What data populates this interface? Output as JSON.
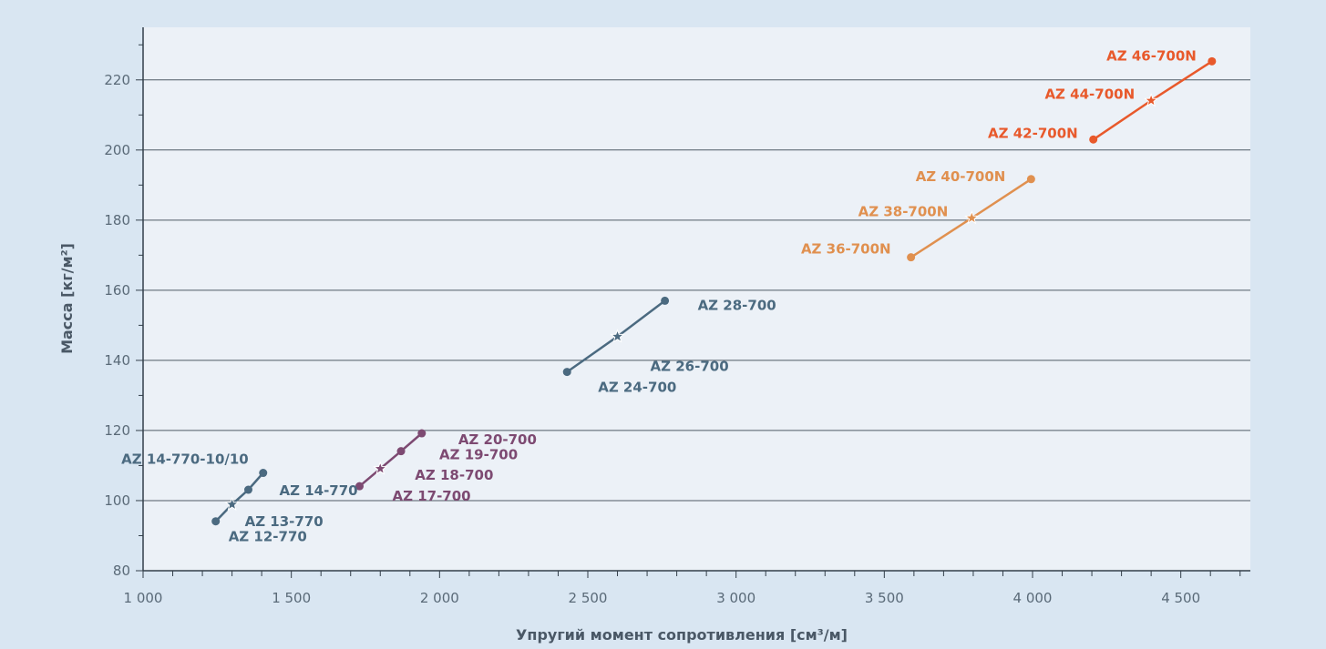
{
  "chart_data": {
    "type": "line",
    "xlabel": "Упругий момент сопротивления [см³/м]",
    "ylabel": "Масса [кг/м²]",
    "xlim": [
      1000,
      4750
    ],
    "ylim": [
      80,
      235
    ],
    "x_ticks": [
      1000,
      1500,
      2000,
      2500,
      3000,
      3500,
      4000,
      4500
    ],
    "x_tick_labels": [
      "1 000",
      "1 500",
      "2 000",
      "2 500",
      "3 000",
      "3 500",
      "4 000",
      "4 500"
    ],
    "y_ticks": [
      80,
      100,
      120,
      140,
      160,
      180,
      200,
      220
    ],
    "y_tick_labels": [
      "80",
      "100",
      "120",
      "140",
      "160",
      "180",
      "200",
      "220"
    ],
    "grid": true,
    "series": [
      {
        "color": "#4b6a80",
        "points": [
          {
            "label": "AZ 12-770",
            "x": 1245,
            "y": 94.1,
            "marker": "dot"
          },
          {
            "label": "AZ 13-770",
            "x": 1300,
            "y": 98.9,
            "marker": "star"
          },
          {
            "label": "AZ 14-770",
            "x": 1355,
            "y": 103.1,
            "marker": "dot"
          },
          {
            "label": "AZ 14-770-10/10",
            "x": 1405,
            "y": 107.9,
            "marker": "dot"
          }
        ]
      },
      {
        "color": "#7d4a72",
        "points": [
          {
            "label": "AZ 17-700",
            "x": 1730,
            "y": 104.1,
            "marker": "dot"
          },
          {
            "label": "AZ 18-700",
            "x": 1800,
            "y": 109.1,
            "marker": "star"
          },
          {
            "label": "AZ 19-700",
            "x": 1870,
            "y": 114.1,
            "marker": "dot"
          },
          {
            "label": "AZ 20-700",
            "x": 1940,
            "y": 119.2,
            "marker": "dot"
          }
        ]
      },
      {
        "color": "#4b6a80",
        "points": [
          {
            "label": "AZ 24-700",
            "x": 2430,
            "y": 136.7,
            "marker": "dot"
          },
          {
            "label": "AZ 26-700",
            "x": 2600,
            "y": 146.8,
            "marker": "star"
          },
          {
            "label": "AZ 28-700",
            "x": 2760,
            "y": 157.0,
            "marker": "dot"
          }
        ]
      },
      {
        "color": "#e0904f",
        "points": [
          {
            "label": "AZ 36-700N",
            "x": 3590,
            "y": 169.4,
            "marker": "dot"
          },
          {
            "label": "AZ 38-700N",
            "x": 3795,
            "y": 180.6,
            "marker": "star"
          },
          {
            "label": "AZ 40-700N",
            "x": 3995,
            "y": 191.7,
            "marker": "dot"
          }
        ]
      },
      {
        "color": "#e8592b",
        "points": [
          {
            "label": "AZ 42-700N",
            "x": 4205,
            "y": 203.0,
            "marker": "dot"
          },
          {
            "label": "AZ 44-700N",
            "x": 4400,
            "y": 214.1,
            "marker": "star"
          },
          {
            "label": "AZ 46-700N",
            "x": 4605,
            "y": 225.3,
            "marker": "dot"
          }
        ]
      }
    ]
  }
}
